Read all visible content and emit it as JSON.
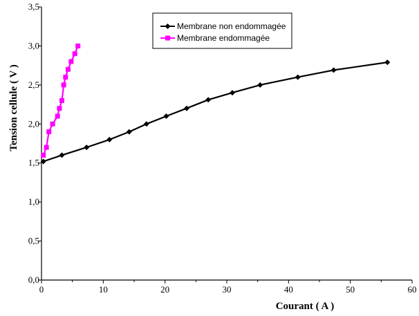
{
  "chart_data": {
    "type": "line",
    "xlabel": "Courant ( A )",
    "ylabel": "Tension cellule  ( V )",
    "xlim": [
      0,
      60
    ],
    "ylim": [
      0,
      3.5
    ],
    "x_ticks": [
      "0",
      "10",
      "20",
      "30",
      "40",
      "50",
      "60"
    ],
    "y_ticks": [
      "0,0",
      "0,5",
      "1,0",
      "1,5",
      "2,0",
      "2,5",
      "3,0",
      "3,5"
    ],
    "grid": false,
    "legend_position": "top-center",
    "series": [
      {
        "name": "Membrane non endommagée",
        "color": "#000000",
        "marker": "diamond",
        "x": [
          0.3,
          3.3,
          7.3,
          11,
          14.2,
          17,
          20.2,
          23.5,
          27,
          30.9,
          35.4,
          41.5,
          47.3,
          56
        ],
        "y": [
          1.52,
          1.6,
          1.7,
          1.8,
          1.9,
          2.0,
          2.1,
          2.2,
          2.31,
          2.4,
          2.5,
          2.6,
          2.69,
          2.79
        ]
      },
      {
        "name": "Membrane endommagée",
        "color": "#ff00ff",
        "marker": "square",
        "x": [
          0.3,
          0.8,
          1.2,
          1.8,
          2.6,
          2.9,
          3.3,
          3.6,
          3.9,
          4.3,
          4.8,
          5.4,
          5.9
        ],
        "y": [
          1.6,
          1.7,
          1.9,
          2.0,
          2.1,
          2.2,
          2.3,
          2.5,
          2.6,
          2.7,
          2.8,
          2.9,
          3.0
        ]
      }
    ]
  }
}
